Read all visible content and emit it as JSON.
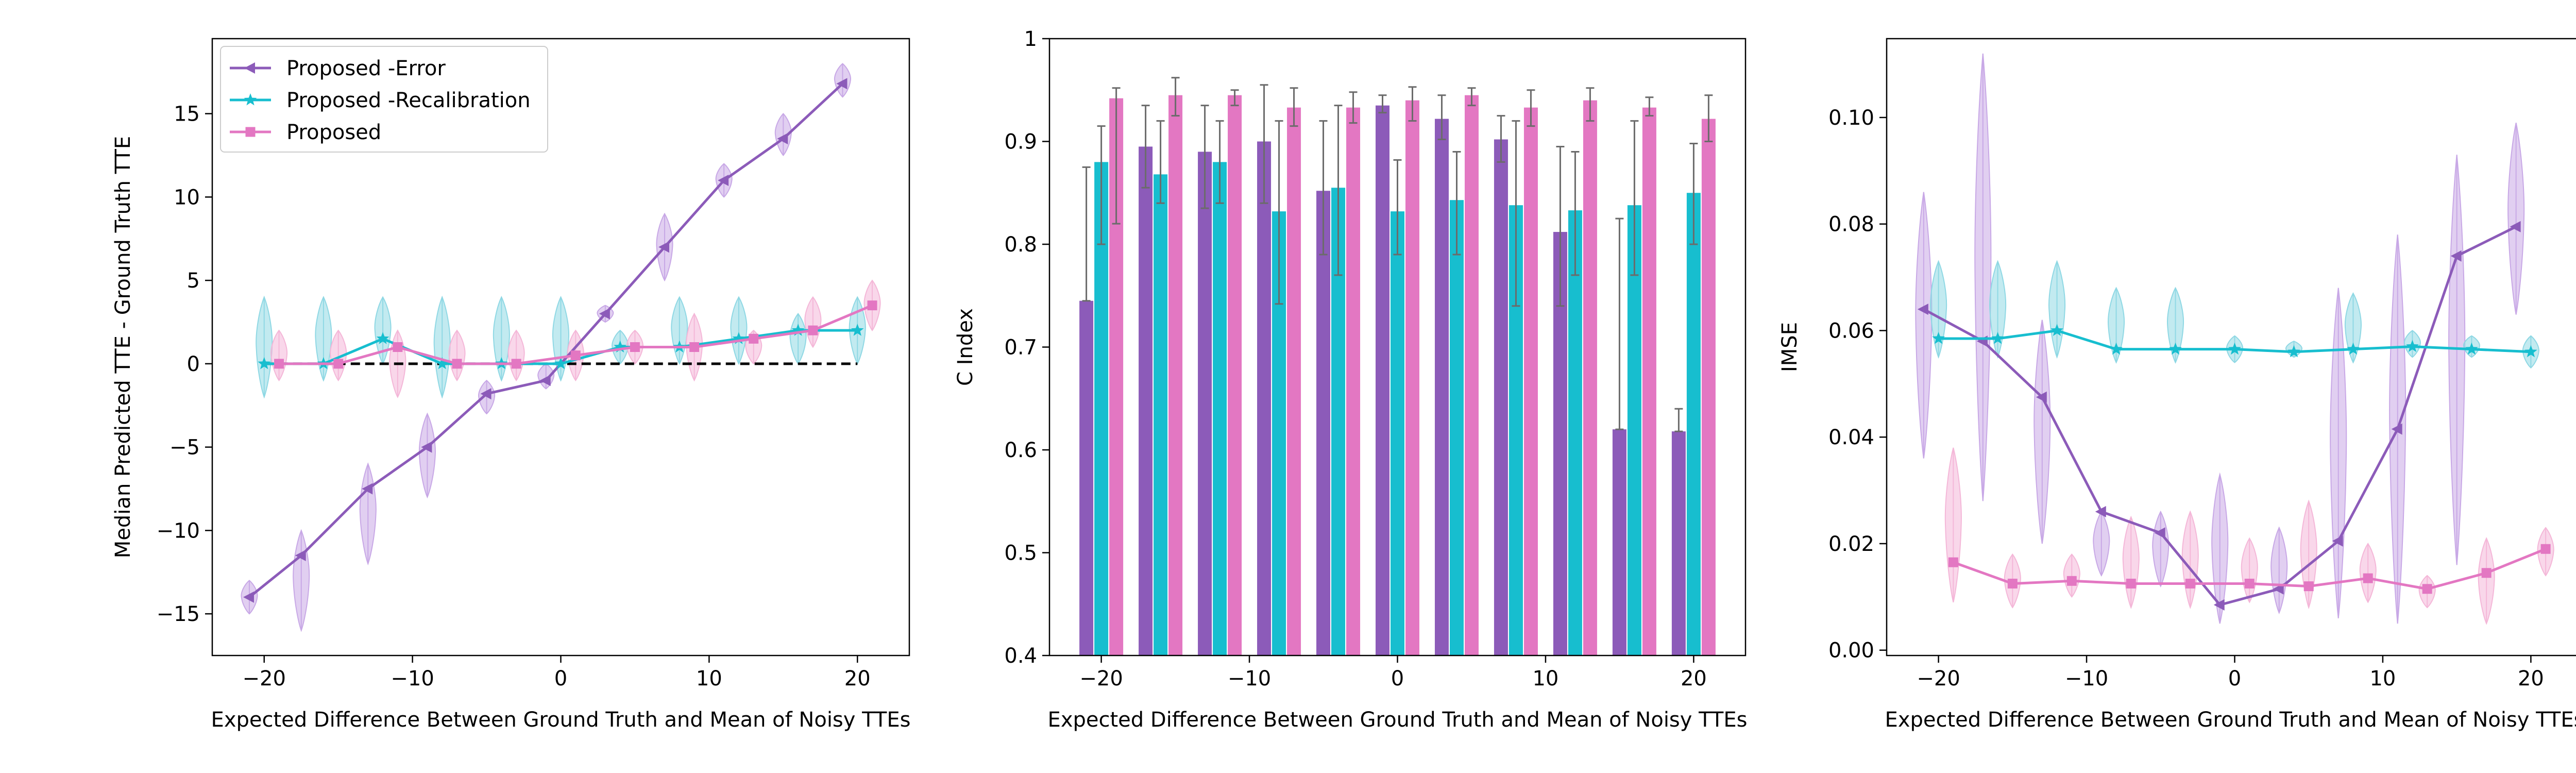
{
  "colors": {
    "error": "#8c5bb9",
    "recalibration": "#17becf",
    "proposed": "#e377c2",
    "violin_error": "#c8a8e6",
    "violin_recal": "#8fd8e4",
    "violin_proposed": "#f4b7d8",
    "errorbar": "#6b6b6b",
    "reference": "#000000"
  },
  "legend": {
    "position": "upper-left",
    "entries": [
      "Proposed -Error",
      "Proposed -Recalibration",
      "Proposed"
    ]
  },
  "chart_data": [
    {
      "type": "line",
      "title": "",
      "xlabel": "Expected Difference Between Ground Truth and Mean of Noisy TTEs",
      "ylabel": "Median Predicted TTE - Ground Truth TTE",
      "xlim": [
        -23.5,
        23.5
      ],
      "ylim": [
        -17.5,
        19.5
      ],
      "xticks": [
        -20,
        -10,
        0,
        10,
        20
      ],
      "yticks": [
        -15,
        -10,
        -5,
        0,
        5,
        10,
        15
      ],
      "reference_line": {
        "y": 0,
        "x": [
          -20,
          20
        ],
        "style": "dashed"
      },
      "series": [
        {
          "name": "Proposed -Error",
          "marker": "triangle-left",
          "x": [
            -21,
            -17.5,
            -13,
            -9,
            -5,
            -1,
            3,
            7,
            11,
            15,
            19
          ],
          "y": [
            -14,
            -11.5,
            -7.5,
            -5,
            -1.8,
            -1,
            3,
            7,
            11,
            13.5,
            16.8
          ]
        },
        {
          "name": "Proposed -Recalibration",
          "marker": "star",
          "x": [
            -20,
            -16,
            -12,
            -8,
            -4,
            0,
            4,
            8,
            12,
            16,
            20
          ],
          "y": [
            0,
            0,
            1.5,
            0,
            0,
            0,
            1,
            1,
            1.5,
            2,
            2
          ]
        },
        {
          "name": "Proposed",
          "marker": "square",
          "x": [
            -19,
            -15,
            -11,
            -7,
            -3,
            1,
            5,
            9,
            13,
            17,
            21
          ],
          "y": [
            0,
            0,
            1,
            0,
            0,
            0.5,
            1,
            1,
            1.5,
            2,
            3.5
          ]
        }
      ],
      "violins": {
        "Proposed -Error": [
          [
            -15,
            -13
          ],
          [
            -16,
            -10
          ],
          [
            -12,
            -6
          ],
          [
            -8,
            -3
          ],
          [
            -3,
            -1
          ],
          [
            -1.5,
            0
          ],
          [
            2.5,
            3.5
          ],
          [
            5,
            9
          ],
          [
            10,
            12
          ],
          [
            12.5,
            15
          ],
          [
            16,
            18
          ]
        ],
        "Proposed -Recalibration": [
          [
            -2,
            4
          ],
          [
            -1,
            4
          ],
          [
            0,
            4
          ],
          [
            -2,
            4
          ],
          [
            -1,
            4
          ],
          [
            -1,
            4
          ],
          [
            0,
            2
          ],
          [
            0,
            4
          ],
          [
            0,
            4
          ],
          [
            0,
            3
          ],
          [
            0,
            4
          ]
        ],
        "Proposed": [
          [
            -1,
            2
          ],
          [
            -1,
            2
          ],
          [
            -2,
            2
          ],
          [
            -1,
            2
          ],
          [
            -1,
            2
          ],
          [
            -1,
            2
          ],
          [
            0,
            2
          ],
          [
            -1,
            3
          ],
          [
            0,
            2
          ],
          [
            1,
            4
          ],
          [
            2,
            5
          ]
        ]
      }
    },
    {
      "type": "bar",
      "title": "",
      "xlabel": "Expected Difference Between Ground Truth and Mean of Noisy TTEs",
      "ylabel": "C Index",
      "xlim": [
        -23.5,
        23.5
      ],
      "ylim": [
        0.4,
        1.0
      ],
      "xticks": [
        -20,
        -10,
        0,
        10,
        20
      ],
      "yticks": [
        0.4,
        0.5,
        0.6,
        0.7,
        0.8,
        0.9,
        1.0
      ],
      "categories": [
        -20,
        -16,
        -12,
        -8,
        -4,
        0,
        4,
        8,
        12,
        16,
        20
      ],
      "series": [
        {
          "name": "Proposed -Error",
          "values": [
            0.745,
            0.895,
            0.89,
            0.9,
            0.852,
            0.935,
            0.922,
            0.902,
            0.812,
            0.62,
            0.618
          ],
          "err_low": [
            0.745,
            0.855,
            0.835,
            0.84,
            0.79,
            0.928,
            0.902,
            0.88,
            0.74,
            0.62,
            0.618
          ],
          "err_high": [
            0.875,
            0.935,
            0.935,
            0.955,
            0.92,
            0.945,
            0.945,
            0.925,
            0.895,
            0.825,
            0.64
          ]
        },
        {
          "name": "Proposed -Recalibration",
          "values": [
            0.88,
            0.868,
            0.88,
            0.832,
            0.855,
            0.832,
            0.843,
            0.838,
            0.833,
            0.838,
            0.85
          ],
          "err_low": [
            0.8,
            0.84,
            0.84,
            0.742,
            0.77,
            0.79,
            0.79,
            0.74,
            0.77,
            0.77,
            0.8
          ],
          "err_high": [
            0.915,
            0.92,
            0.92,
            0.92,
            0.935,
            0.882,
            0.89,
            0.92,
            0.89,
            0.92,
            0.898
          ]
        },
        {
          "name": "Proposed",
          "values": [
            0.942,
            0.945,
            0.945,
            0.933,
            0.933,
            0.94,
            0.945,
            0.933,
            0.94,
            0.933,
            0.922
          ],
          "err_low": [
            0.82,
            0.925,
            0.935,
            0.915,
            0.918,
            0.92,
            0.935,
            0.915,
            0.92,
            0.925,
            0.9
          ],
          "err_high": [
            0.952,
            0.962,
            0.95,
            0.952,
            0.948,
            0.953,
            0.952,
            0.95,
            0.952,
            0.943,
            0.945
          ]
        }
      ]
    },
    {
      "type": "line",
      "title": "",
      "xlabel": "Expected Difference Between Ground Truth and Mean of Noisy TTEs",
      "ylabel": "IMSE",
      "xlim": [
        -23.5,
        23.5
      ],
      "ylim": [
        -0.001,
        0.1148
      ],
      "xticks": [
        -20,
        -10,
        0,
        10,
        20
      ],
      "yticks": [
        0.0,
        0.02,
        0.04,
        0.06,
        0.08,
        0.1
      ],
      "ytick_labels": [
        "0.00",
        "0.02",
        "0.04",
        "0.06",
        "0.08",
        "0.10"
      ],
      "series": [
        {
          "name": "Proposed -Error",
          "marker": "triangle-left",
          "x": [
            -21,
            -17,
            -13,
            -9,
            -5,
            -1,
            3,
            7,
            11,
            15,
            19
          ],
          "y": [
            0.064,
            0.058,
            0.0475,
            0.026,
            0.022,
            0.0085,
            0.0115,
            0.0205,
            0.0415,
            0.074,
            0.0795
          ]
        },
        {
          "name": "Proposed -Recalibration",
          "marker": "star",
          "x": [
            -20,
            -16,
            -12,
            -8,
            -4,
            0,
            4,
            8,
            12,
            16,
            20
          ],
          "y": [
            0.0585,
            0.0585,
            0.06,
            0.0565,
            0.0565,
            0.0565,
            0.056,
            0.0565,
            0.057,
            0.0565,
            0.056
          ]
        },
        {
          "name": "Proposed",
          "marker": "square",
          "x": [
            -19,
            -15,
            -11,
            -7,
            -3,
            1,
            5,
            9,
            13,
            17,
            21
          ],
          "y": [
            0.0165,
            0.0125,
            0.013,
            0.0125,
            0.0125,
            0.0125,
            0.012,
            0.0135,
            0.0115,
            0.0145,
            0.019
          ]
        }
      ],
      "violins": {
        "Proposed -Error": [
          [
            0.036,
            0.086
          ],
          [
            0.028,
            0.112
          ],
          [
            0.02,
            0.062
          ],
          [
            0.014,
            0.026
          ],
          [
            0.012,
            0.026
          ],
          [
            0.005,
            0.033
          ],
          [
            0.007,
            0.023
          ],
          [
            0.006,
            0.068
          ],
          [
            0.005,
            0.078
          ],
          [
            0.016,
            0.093
          ],
          [
            0.063,
            0.099
          ]
        ],
        "Proposed -Recalibration": [
          [
            0.055,
            0.073
          ],
          [
            0.055,
            0.073
          ],
          [
            0.055,
            0.073
          ],
          [
            0.054,
            0.068
          ],
          [
            0.054,
            0.068
          ],
          [
            0.054,
            0.059
          ],
          [
            0.055,
            0.058
          ],
          [
            0.054,
            0.067
          ],
          [
            0.055,
            0.06
          ],
          [
            0.055,
            0.059
          ],
          [
            0.053,
            0.059
          ]
        ],
        "Proposed": [
          [
            0.009,
            0.038
          ],
          [
            0.008,
            0.018
          ],
          [
            0.01,
            0.018
          ],
          [
            0.008,
            0.025
          ],
          [
            0.008,
            0.026
          ],
          [
            0.009,
            0.021
          ],
          [
            0.008,
            0.028
          ],
          [
            0.009,
            0.02
          ],
          [
            0.008,
            0.014
          ],
          [
            0.005,
            0.021
          ],
          [
            0.014,
            0.023
          ]
        ]
      }
    }
  ]
}
